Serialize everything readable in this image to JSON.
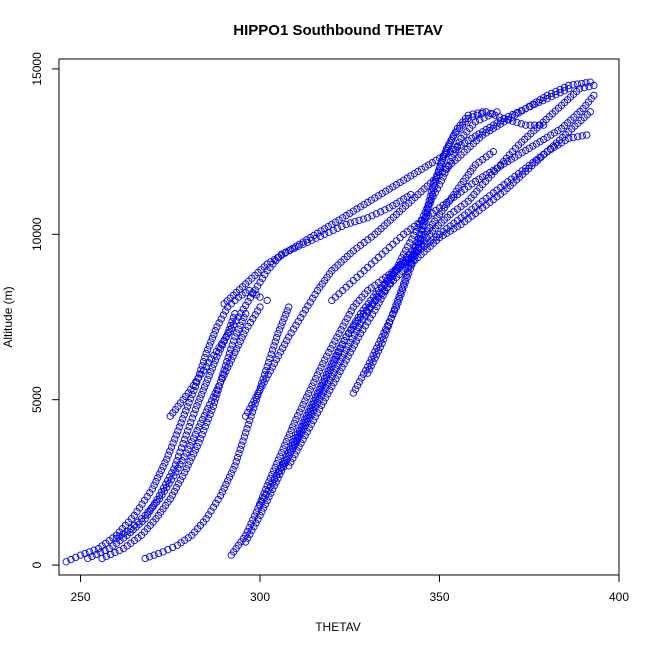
{
  "chart_data": {
    "type": "scatter",
    "title": "HIPPO1 Southbound THETAV",
    "xlabel": "THETAV",
    "ylabel": "Altitude (m)",
    "xlim": [
      244,
      400
    ],
    "ylim": [
      -300,
      15300
    ],
    "x_ticks": [
      250,
      300,
      350,
      400
    ],
    "y_ticks": [
      0,
      5000,
      10000,
      15000
    ],
    "grid": false,
    "legend": "none",
    "marker": "open-circle",
    "color": "#0000ff",
    "series": [
      {
        "points": [
          [
            246,
            100
          ],
          [
            250,
            300
          ],
          [
            255,
            500
          ],
          [
            260,
            900
          ],
          [
            265,
            1500
          ],
          [
            270,
            2300
          ],
          [
            274,
            3200
          ],
          [
            278,
            4300
          ],
          [
            282,
            5400
          ],
          [
            285,
            6400
          ],
          [
            288,
            7200
          ],
          [
            291,
            7800
          ],
          [
            294,
            8100
          ],
          [
            297,
            8300
          ],
          [
            300,
            8100
          ],
          [
            302,
            8000
          ]
        ]
      },
      {
        "points": [
          [
            252,
            200
          ],
          [
            258,
            500
          ],
          [
            263,
            900
          ],
          [
            268,
            1400
          ],
          [
            272,
            2100
          ],
          [
            276,
            2900
          ],
          [
            279,
            3800
          ],
          [
            282,
            4700
          ],
          [
            285,
            5500
          ],
          [
            288,
            6300
          ],
          [
            291,
            7000
          ],
          [
            293,
            7600
          ]
        ]
      },
      {
        "points": [
          [
            256,
            200
          ],
          [
            262,
            500
          ],
          [
            267,
            900
          ],
          [
            271,
            1400
          ],
          [
            275,
            2000
          ],
          [
            279,
            2800
          ],
          [
            283,
            3700
          ],
          [
            287,
            4800
          ],
          [
            290,
            5900
          ],
          [
            293,
            6900
          ],
          [
            296,
            7600
          ]
        ]
      },
      {
        "points": [
          [
            268,
            200
          ],
          [
            273,
            400
          ],
          [
            277,
            600
          ],
          [
            281,
            900
          ],
          [
            285,
            1400
          ],
          [
            289,
            2100
          ],
          [
            293,
            3000
          ],
          [
            296,
            4000
          ],
          [
            299,
            5000
          ],
          [
            302,
            6000
          ],
          [
            305,
            7000
          ],
          [
            308,
            7800
          ]
        ]
      },
      {
        "points": [
          [
            292,
            300
          ],
          [
            296,
            900
          ],
          [
            299,
            1600
          ],
          [
            302,
            2400
          ],
          [
            306,
            3400
          ],
          [
            310,
            4400
          ],
          [
            314,
            5300
          ],
          [
            318,
            6200
          ],
          [
            322,
            7000
          ],
          [
            326,
            7800
          ],
          [
            330,
            8300
          ],
          [
            335,
            8700
          ],
          [
            342,
            9300
          ],
          [
            348,
            10100
          ],
          [
            353,
            10600
          ],
          [
            358,
            11000
          ],
          [
            362,
            11500
          ],
          [
            367,
            12100
          ],
          [
            372,
            12700
          ],
          [
            378,
            13300
          ],
          [
            384,
            13900
          ],
          [
            389,
            14400
          ],
          [
            393,
            14500
          ]
        ]
      },
      {
        "points": [
          [
            296,
            700
          ],
          [
            300,
            1500
          ],
          [
            304,
            2400
          ],
          [
            308,
            3300
          ],
          [
            312,
            4200
          ],
          [
            316,
            5100
          ],
          [
            320,
            6000
          ],
          [
            324,
            6900
          ],
          [
            328,
            7600
          ],
          [
            333,
            8300
          ],
          [
            338,
            8900
          ],
          [
            343,
            9400
          ],
          [
            350,
            10000
          ],
          [
            356,
            10500
          ],
          [
            362,
            11000
          ],
          [
            368,
            11500
          ],
          [
            374,
            12000
          ],
          [
            380,
            12500
          ],
          [
            386,
            12900
          ],
          [
            391,
            13000
          ]
        ]
      },
      {
        "points": [
          [
            300,
            1800
          ],
          [
            304,
            2600
          ],
          [
            308,
            3400
          ],
          [
            312,
            4300
          ],
          [
            316,
            5200
          ],
          [
            320,
            6100
          ],
          [
            324,
            6900
          ],
          [
            328,
            7500
          ],
          [
            333,
            8100
          ],
          [
            338,
            8700
          ],
          [
            344,
            9300
          ],
          [
            350,
            9900
          ],
          [
            356,
            10300
          ],
          [
            362,
            10800
          ],
          [
            368,
            11300
          ],
          [
            374,
            11900
          ],
          [
            380,
            12500
          ],
          [
            386,
            13100
          ],
          [
            392,
            13700
          ]
        ]
      },
      {
        "points": [
          [
            304,
            2600
          ],
          [
            308,
            3300
          ],
          [
            312,
            4100
          ],
          [
            316,
            4900
          ],
          [
            320,
            5700
          ],
          [
            324,
            6500
          ],
          [
            328,
            7300
          ],
          [
            332,
            8000
          ],
          [
            336,
            8700
          ],
          [
            340,
            9200
          ],
          [
            344,
            9700
          ],
          [
            348,
            10300
          ],
          [
            352,
            10900
          ],
          [
            356,
            11500
          ],
          [
            360,
            12100
          ],
          [
            365,
            12500
          ]
        ]
      },
      {
        "points": [
          [
            308,
            3000
          ],
          [
            312,
            3800
          ],
          [
            316,
            4600
          ],
          [
            320,
            5400
          ],
          [
            324,
            6200
          ],
          [
            328,
            7000
          ],
          [
            332,
            7700
          ],
          [
            336,
            8500
          ],
          [
            340,
            9400
          ],
          [
            344,
            10200
          ],
          [
            347,
            10900
          ],
          [
            350,
            11500
          ],
          [
            353,
            12200
          ],
          [
            356,
            12900
          ],
          [
            360,
            13400
          ],
          [
            366,
            13700
          ]
        ]
      },
      {
        "points": [
          [
            326,
            5200
          ],
          [
            330,
            6000
          ],
          [
            334,
            6900
          ],
          [
            338,
            7800
          ],
          [
            341,
            8700
          ],
          [
            344,
            9600
          ],
          [
            346,
            10400
          ],
          [
            348,
            11200
          ],
          [
            350,
            12000
          ],
          [
            352,
            12600
          ],
          [
            355,
            13200
          ],
          [
            358,
            13600
          ],
          [
            362,
            13700
          ]
        ]
      },
      {
        "points": [
          [
            330,
            5800
          ],
          [
            334,
            6700
          ],
          [
            337,
            7600
          ],
          [
            340,
            8500
          ],
          [
            343,
            9500
          ],
          [
            346,
            10500
          ],
          [
            348,
            11400
          ],
          [
            351,
            12300
          ],
          [
            354,
            13000
          ],
          [
            358,
            13500
          ],
          [
            363,
            13700
          ],
          [
            368,
            13500
          ],
          [
            374,
            13300
          ],
          [
            379,
            13300
          ]
        ]
      },
      {
        "points": [
          [
            320,
            8000
          ],
          [
            324,
            8400
          ],
          [
            328,
            8800
          ],
          [
            332,
            9200
          ],
          [
            336,
            9600
          ],
          [
            340,
            10000
          ],
          [
            345,
            10400
          ],
          [
            350,
            10800
          ],
          [
            355,
            11200
          ],
          [
            360,
            11600
          ],
          [
            366,
            12000
          ],
          [
            372,
            12400
          ],
          [
            378,
            12800
          ],
          [
            384,
            13200
          ],
          [
            390,
            13800
          ],
          [
            393,
            14200
          ]
        ]
      },
      {
        "points": [
          [
            290,
            7900
          ],
          [
            296,
            8500
          ],
          [
            302,
            9100
          ],
          [
            308,
            9500
          ],
          [
            314,
            9900
          ],
          [
            320,
            10300
          ],
          [
            326,
            10700
          ],
          [
            332,
            11100
          ],
          [
            338,
            11500
          ],
          [
            344,
            11900
          ],
          [
            350,
            12300
          ],
          [
            356,
            12700
          ],
          [
            362,
            13100
          ],
          [
            368,
            13500
          ],
          [
            374,
            13800
          ],
          [
            380,
            14200
          ],
          [
            386,
            14500
          ],
          [
            392,
            14600
          ]
        ]
      },
      {
        "points": [
          [
            275,
            4500
          ],
          [
            280,
            5200
          ],
          [
            285,
            6000
          ],
          [
            290,
            6800
          ],
          [
            294,
            7500
          ],
          [
            298,
            8200
          ],
          [
            302,
            8900
          ],
          [
            306,
            9400
          ],
          [
            312,
            9700
          ],
          [
            318,
            10000
          ],
          [
            324,
            10300
          ],
          [
            330,
            10500
          ],
          [
            336,
            10800
          ],
          [
            342,
            11200
          ]
        ]
      },
      {
        "points": [
          [
            296,
            4500
          ],
          [
            300,
            5300
          ],
          [
            304,
            6100
          ],
          [
            308,
            6900
          ],
          [
            312,
            7600
          ],
          [
            316,
            8300
          ],
          [
            320,
            8900
          ],
          [
            326,
            9500
          ],
          [
            332,
            10000
          ],
          [
            338,
            10600
          ],
          [
            344,
            11200
          ],
          [
            350,
            11800
          ],
          [
            356,
            12400
          ],
          [
            362,
            13000
          ],
          [
            368,
            13400
          ],
          [
            374,
            13800
          ],
          [
            380,
            14100
          ],
          [
            386,
            14400
          ]
        ]
      },
      {
        "points": [
          [
            260,
            800
          ],
          [
            264,
            1100
          ],
          [
            268,
            1500
          ],
          [
            272,
            2000
          ],
          [
            276,
            2700
          ],
          [
            280,
            3500
          ],
          [
            284,
            4400
          ],
          [
            288,
            5300
          ],
          [
            292,
            6200
          ],
          [
            296,
            7100
          ],
          [
            300,
            7800
          ]
        ]
      }
    ]
  }
}
